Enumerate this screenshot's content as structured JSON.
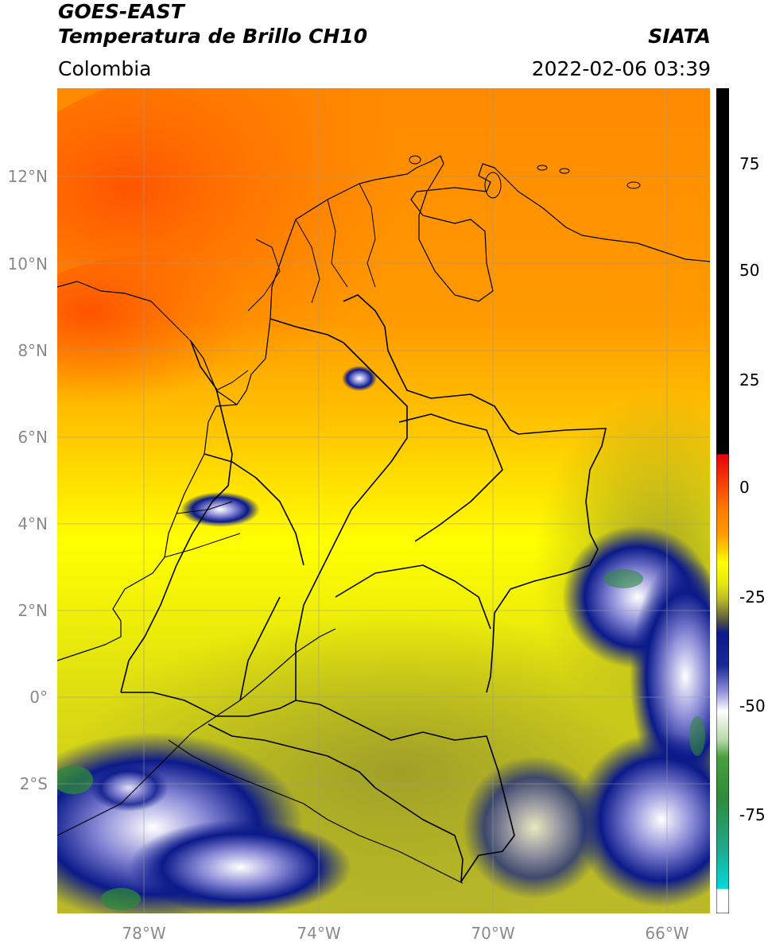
{
  "header": {
    "satellite": "GOES-EAST",
    "product": "Temperatura de Brillo CH10",
    "region": "Colombia",
    "source": "SIATA",
    "timestamp": "2022-02-06 03:39"
  },
  "axes": {
    "lat_labels": [
      "12°N",
      "10°N",
      "8°N",
      "6°N",
      "4°N",
      "2°N",
      "0°",
      "2°S"
    ],
    "lon_labels": [
      "78°W",
      "74°W",
      "70°W",
      "66°W"
    ]
  },
  "colorbar": {
    "ticks": [
      "75",
      "50",
      "25",
      "0",
      "-25",
      "-50",
      "-75"
    ],
    "colors": {
      "warm": "#000000",
      "hot": "#e8000b",
      "orange": "#ff9a00",
      "yellow": "#ffff00",
      "olive": "#b8b82a",
      "navy": "#0b1a8a",
      "white": "#ffffff",
      "green": "#2e8b3a",
      "cyan": "#00d9d9"
    }
  }
}
